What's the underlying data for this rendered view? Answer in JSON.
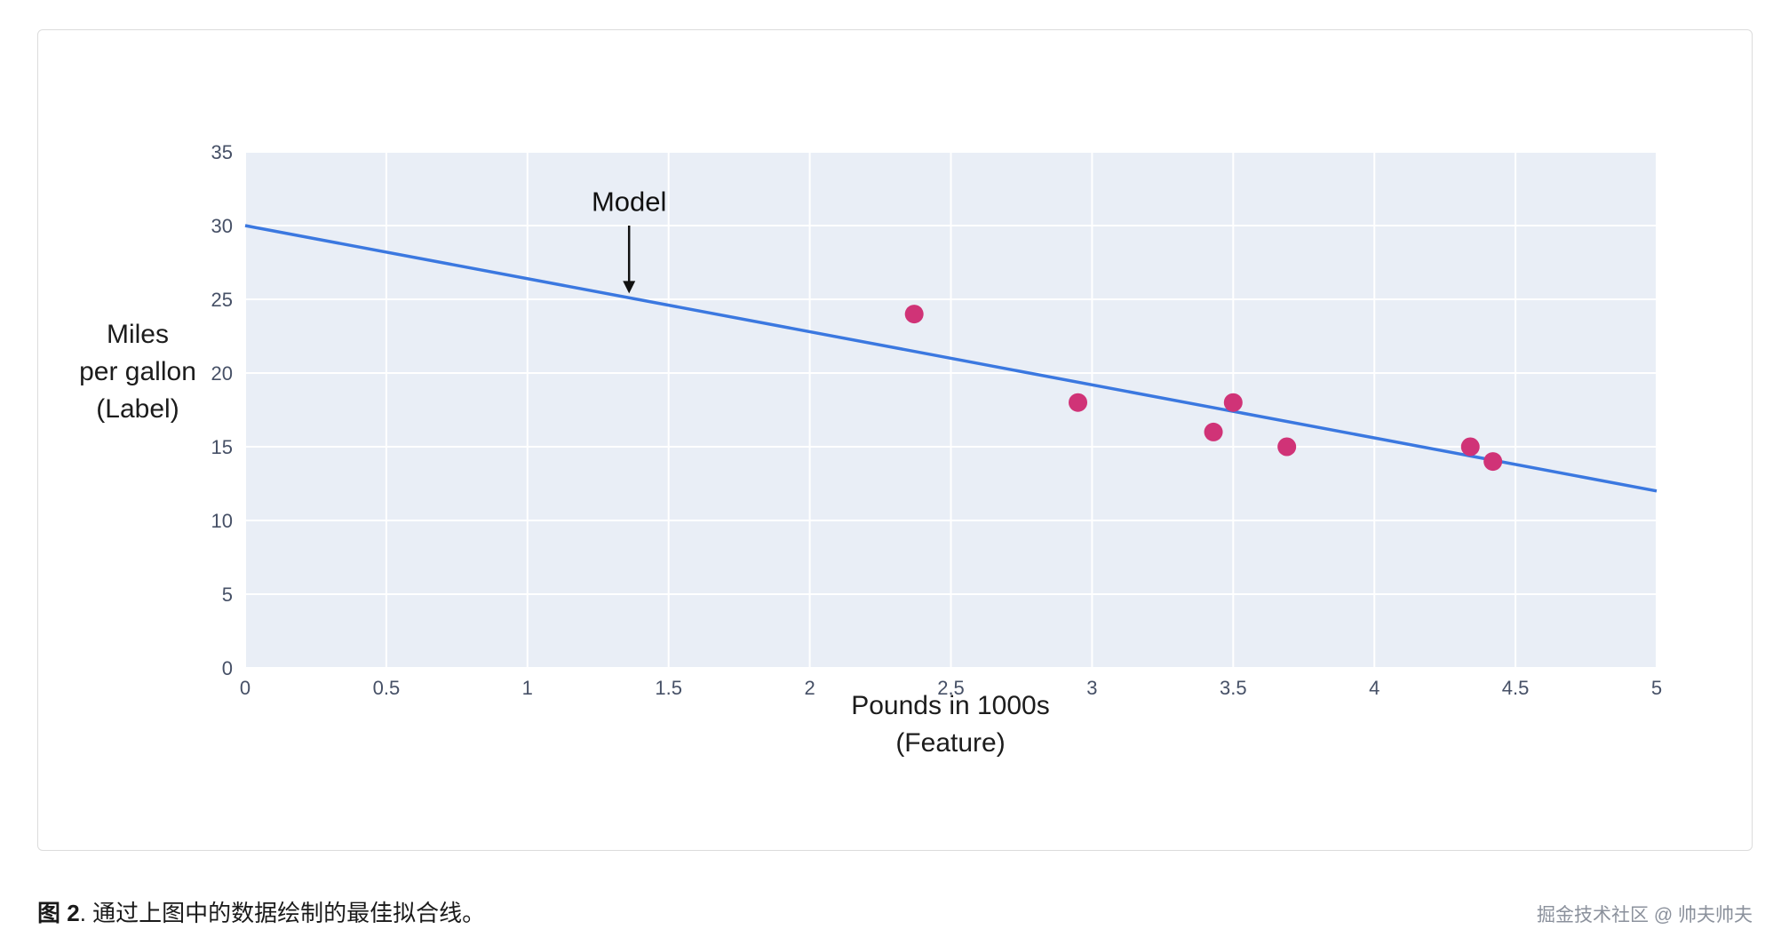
{
  "page": {
    "caption_bold": "图 2",
    "caption_rest": ". 通过上图中的数据绘制的最佳拟合线。",
    "watermark": "掘金技术社区 @ 帅夫帅夫"
  },
  "chart_data": {
    "type": "scatter",
    "title": "",
    "xlabel": [
      "Pounds in 1000s",
      "(Feature)"
    ],
    "ylabel": [
      "Miles",
      "per gallon",
      "(Label)"
    ],
    "xlim": [
      0,
      5
    ],
    "ylim": [
      0,
      35
    ],
    "xticks": [
      0,
      0.5,
      1,
      1.5,
      2,
      2.5,
      3,
      3.5,
      4,
      4.5,
      5
    ],
    "yticks": [
      0,
      5,
      10,
      15,
      20,
      25,
      30,
      35
    ],
    "grid": true,
    "legend": "none",
    "points": {
      "name": "cars",
      "x": [
        2.37,
        2.95,
        3.43,
        3.5,
        3.69,
        4.34,
        4.42
      ],
      "y": [
        24,
        18,
        16,
        18,
        15,
        15,
        14
      ]
    },
    "fit_line": {
      "name": "Model",
      "x": [
        0,
        5
      ],
      "y": [
        30,
        12
      ]
    },
    "annotation": {
      "label": "Model",
      "x": 1.36,
      "label_y": 31.0,
      "arrow_from_y": 30.0,
      "arrow_to_y": 25.4
    },
    "colors": {
      "line": "#3b78e0",
      "point": "#d03377",
      "plot_bg": "#e9eef6",
      "grid": "#ffffff",
      "tick": "#465066",
      "label": "#1c1c1c"
    }
  }
}
